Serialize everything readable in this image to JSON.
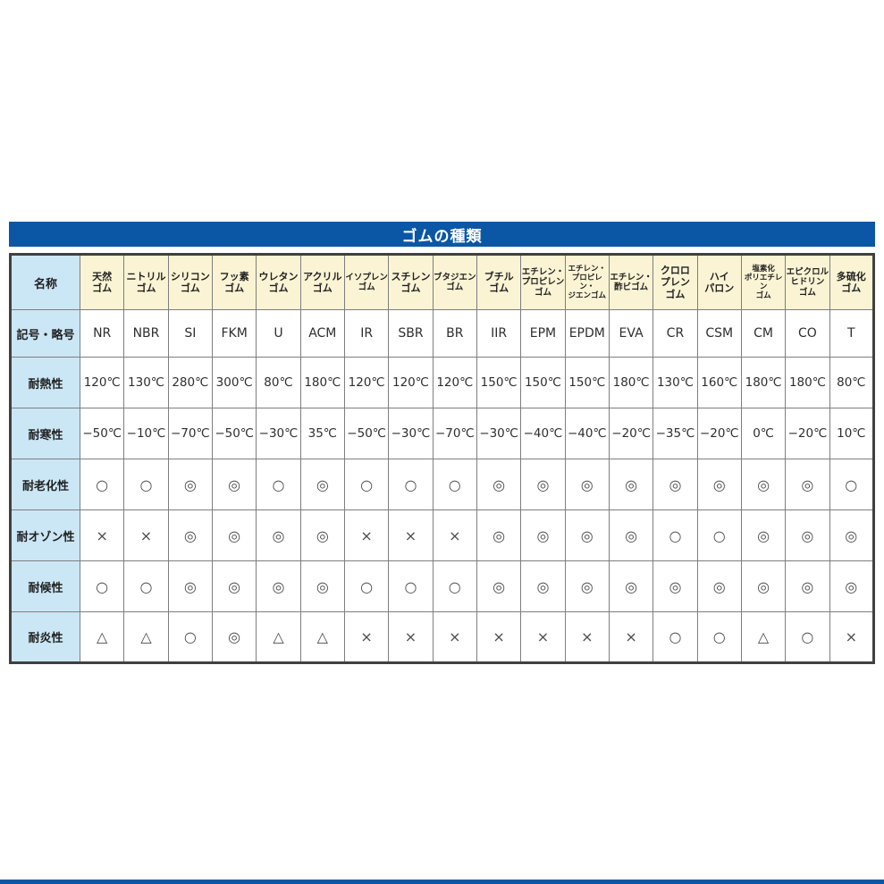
{
  "title": "ゴムの種類",
  "colors": {
    "accent_blue": "#0b57a5",
    "header_cream": "#faf4d4",
    "label_blue": "#cbe7f6"
  },
  "table": {
    "corner_label": "名称",
    "rows": [
      {
        "key": "symbol",
        "label": "記号・略号"
      },
      {
        "key": "heat",
        "label": "耐熱性"
      },
      {
        "key": "cold",
        "label": "耐寒性"
      },
      {
        "key": "aging",
        "label": "耐老化性"
      },
      {
        "key": "ozone",
        "label": "耐オゾン性"
      },
      {
        "key": "weather",
        "label": "耐候性"
      },
      {
        "key": "flame",
        "label": "耐炎性"
      }
    ],
    "columns": [
      {
        "name": "天然\nゴム",
        "symbol": "NR",
        "heat": "120℃",
        "cold": "−50℃",
        "aging": "○",
        "ozone": "×",
        "weather": "○",
        "flame": "△"
      },
      {
        "name": "ニトリル\nゴム",
        "symbol": "NBR",
        "heat": "130℃",
        "cold": "−10℃",
        "aging": "○",
        "ozone": "×",
        "weather": "○",
        "flame": "△"
      },
      {
        "name": "シリコン\nゴム",
        "symbol": "SI",
        "heat": "280℃",
        "cold": "−70℃",
        "aging": "◎",
        "ozone": "◎",
        "weather": "◎",
        "flame": "○"
      },
      {
        "name": "フッ素\nゴム",
        "symbol": "FKM",
        "heat": "300℃",
        "cold": "−50℃",
        "aging": "◎",
        "ozone": "◎",
        "weather": "◎",
        "flame": "◎"
      },
      {
        "name": "ウレタン\nゴム",
        "symbol": "U",
        "heat": "80℃",
        "cold": "−30℃",
        "aging": "○",
        "ozone": "◎",
        "weather": "◎",
        "flame": "△"
      },
      {
        "name": "アクリル\nゴム",
        "symbol": "ACM",
        "heat": "180℃",
        "cold": "35℃",
        "aging": "◎",
        "ozone": "◎",
        "weather": "◎",
        "flame": "△"
      },
      {
        "name": "イソプレン\nゴム",
        "symbol": "IR",
        "heat": "120℃",
        "cold": "−50℃",
        "aging": "○",
        "ozone": "×",
        "weather": "○",
        "flame": "×"
      },
      {
        "name": "スチレン\nゴム",
        "symbol": "SBR",
        "heat": "120℃",
        "cold": "−30℃",
        "aging": "○",
        "ozone": "×",
        "weather": "○",
        "flame": "×"
      },
      {
        "name": "ブタジエン\nゴム",
        "symbol": "BR",
        "heat": "120℃",
        "cold": "−70℃",
        "aging": "○",
        "ozone": "×",
        "weather": "○",
        "flame": "×"
      },
      {
        "name": "ブチル\nゴム",
        "symbol": "IIR",
        "heat": "150℃",
        "cold": "−30℃",
        "aging": "◎",
        "ozone": "◎",
        "weather": "◎",
        "flame": "×"
      },
      {
        "name": "エチレン・\nプロピレン\nゴム",
        "symbol": "EPM",
        "heat": "150℃",
        "cold": "−40℃",
        "aging": "◎",
        "ozone": "◎",
        "weather": "◎",
        "flame": "×"
      },
      {
        "name": "エチレン・\nプロピレン・\nジエンゴム",
        "symbol": "EPDM",
        "heat": "150℃",
        "cold": "−40℃",
        "aging": "◎",
        "ozone": "◎",
        "weather": "◎",
        "flame": "×"
      },
      {
        "name": "エチレン・\n酢ビゴム",
        "symbol": "EVA",
        "heat": "180℃",
        "cold": "−20℃",
        "aging": "◎",
        "ozone": "◎",
        "weather": "◎",
        "flame": "×"
      },
      {
        "name": "クロロ\nプレン\nゴム",
        "symbol": "CR",
        "heat": "130℃",
        "cold": "−35℃",
        "aging": "◎",
        "ozone": "○",
        "weather": "◎",
        "flame": "○"
      },
      {
        "name": "ハイ\nパロン",
        "symbol": "CSM",
        "heat": "160℃",
        "cold": "−20℃",
        "aging": "◎",
        "ozone": "○",
        "weather": "◎",
        "flame": "○"
      },
      {
        "name": "塩素化\nポリエチレン\nゴム",
        "symbol": "CM",
        "heat": "180℃",
        "cold": "0℃",
        "aging": "◎",
        "ozone": "◎",
        "weather": "◎",
        "flame": "△"
      },
      {
        "name": "エピクロル\nヒドリン\nゴム",
        "symbol": "CO",
        "heat": "180℃",
        "cold": "−20℃",
        "aging": "◎",
        "ozone": "◎",
        "weather": "◎",
        "flame": "○"
      },
      {
        "name": "多硫化\nゴム",
        "symbol": "T",
        "heat": "80℃",
        "cold": "10℃",
        "aging": "○",
        "ozone": "◎",
        "weather": "◎",
        "flame": "×"
      }
    ]
  }
}
